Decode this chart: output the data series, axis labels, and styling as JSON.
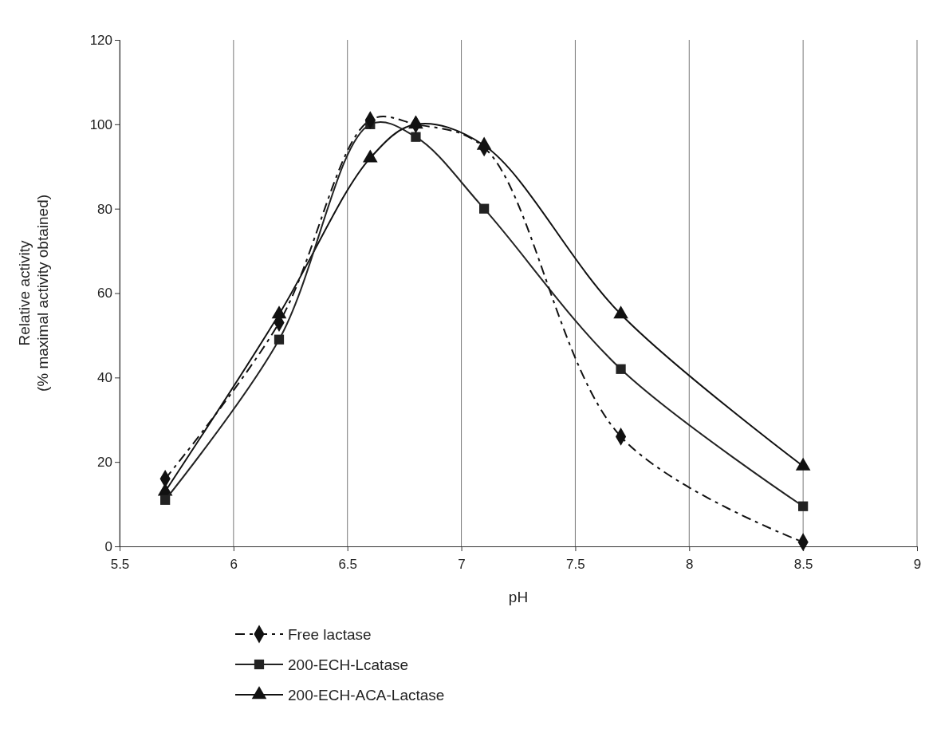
{
  "chart_data": {
    "type": "line",
    "xlabel": "pH",
    "ylabel": "Relative activity\n(% maximal activity obtained)",
    "xlim": [
      5.5,
      9
    ],
    "xticks": [
      5.5,
      6,
      6.5,
      7,
      7.5,
      8,
      8.5,
      9
    ],
    "ylim": [
      0,
      120
    ],
    "yticks": [
      0,
      20,
      40,
      60,
      80,
      100,
      120
    ],
    "grid": "x",
    "legend": "bottom",
    "series": [
      {
        "name": "Free lactase",
        "color": "#111111",
        "marker": "diamond",
        "line_style": "dashed",
        "x": [
          5.7,
          6.2,
          6.6,
          6.8,
          7.1,
          7.7,
          8.5
        ],
        "values": [
          16,
          53,
          101,
          100,
          94.5,
          26,
          1
        ]
      },
      {
        "name": "200-ECH-Lcatase",
        "color": "#222222",
        "marker": "square",
        "line_style": "solid",
        "x": [
          5.7,
          6.2,
          6.6,
          6.8,
          7.1,
          7.7,
          8.5
        ],
        "values": [
          11,
          49,
          100,
          97,
          80,
          42,
          9.5
        ]
      },
      {
        "name": "200-ECH-ACA-Lactase",
        "color": "#111111",
        "marker": "triangle",
        "line_style": "solid",
        "x": [
          5.7,
          6.2,
          6.6,
          6.8,
          7.1,
          7.7,
          8.5
        ],
        "values": [
          13,
          55,
          92,
          100,
          95,
          55,
          19
        ]
      }
    ]
  }
}
